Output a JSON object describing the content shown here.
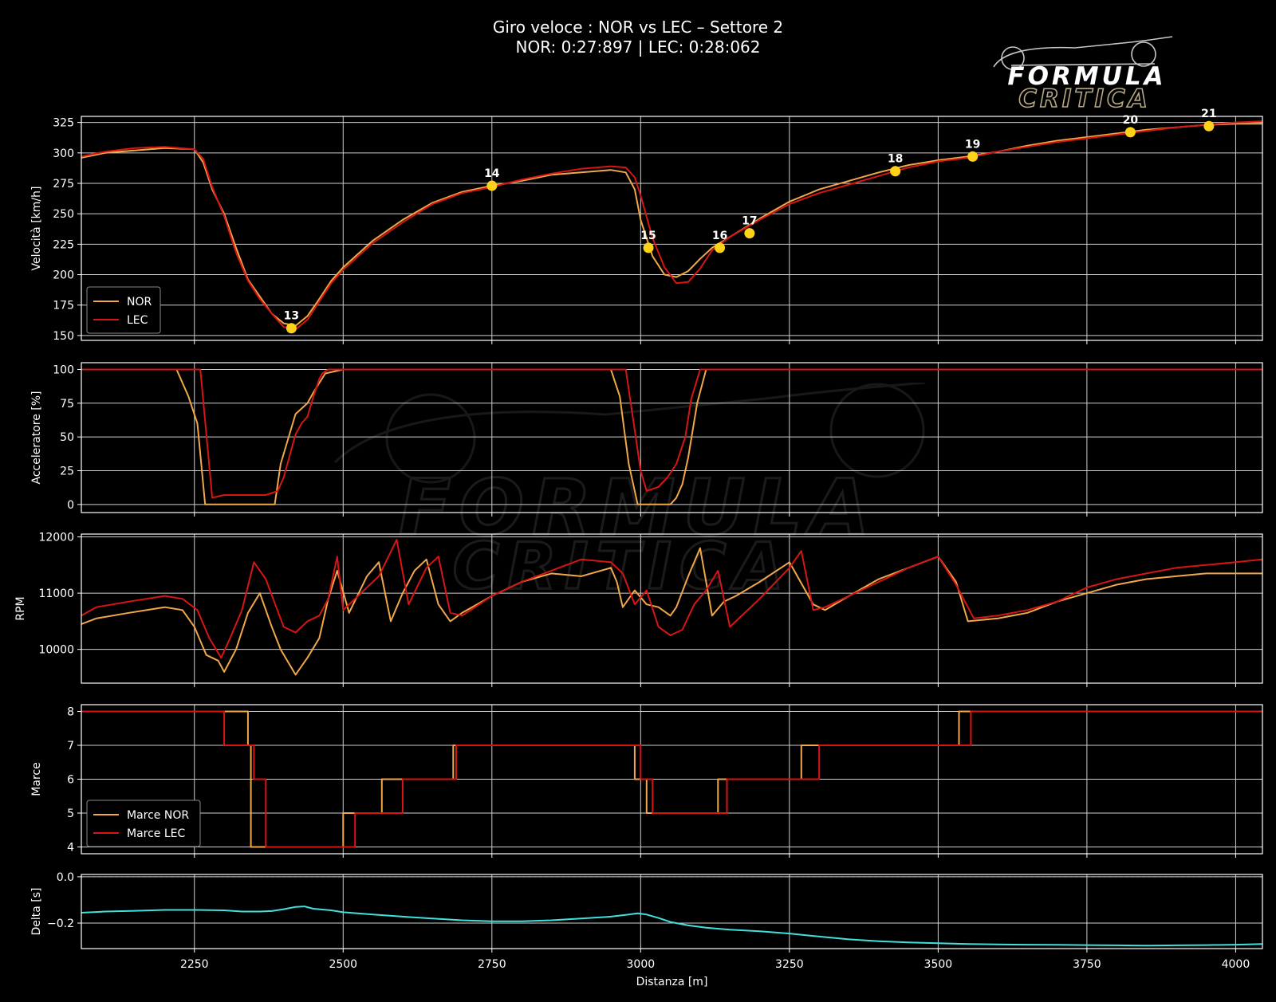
{
  "title": {
    "line1": "Giro veloce : NOR vs LEC – Settore 2",
    "line2": "NOR: 0:27:897 | LEC: 0:28:062"
  },
  "logo": {
    "line1": "FORMULA",
    "line2": "CRITICA"
  },
  "colors": {
    "nor": "#f0a848",
    "lec": "#d81515",
    "delta": "#40e0e0",
    "corner": "#ffd21a",
    "grid": "#cfcfcf"
  },
  "chart_data": [
    {
      "type": "line",
      "ylabel": "Velocità [km/h]",
      "xlim": [
        2060,
        4045
      ],
      "ylim": [
        146,
        330
      ],
      "yticks": [
        150,
        175,
        200,
        225,
        250,
        275,
        300,
        325
      ],
      "legend": "bottom-left",
      "series": [
        {
          "name": "NOR",
          "x": [
            2060,
            2100,
            2150,
            2200,
            2250,
            2265,
            2280,
            2300,
            2320,
            2340,
            2360,
            2380,
            2400,
            2420,
            2440,
            2460,
            2480,
            2500,
            2550,
            2600,
            2650,
            2700,
            2750,
            2800,
            2850,
            2900,
            2950,
            2975,
            2990,
            3000,
            3020,
            3040,
            3060,
            3080,
            3100,
            3120,
            3150,
            3200,
            3250,
            3300,
            3350,
            3400,
            3450,
            3500,
            3550,
            3600,
            3650,
            3700,
            3750,
            3800,
            3850,
            3900,
            3950,
            4000,
            4045
          ],
          "values": [
            296,
            300,
            302,
            304,
            303,
            292,
            270,
            250,
            222,
            196,
            182,
            168,
            160,
            158,
            166,
            180,
            195,
            206,
            228,
            245,
            259,
            268,
            273,
            277,
            282,
            284,
            286,
            284,
            270,
            245,
            215,
            200,
            198,
            203,
            213,
            222,
            231,
            246,
            260,
            270,
            277,
            284,
            290,
            294,
            297,
            301,
            306,
            310,
            313,
            316,
            319,
            321,
            323,
            324,
            324
          ]
        },
        {
          "name": "LEC",
          "x": [
            2060,
            2100,
            2150,
            2200,
            2250,
            2265,
            2280,
            2300,
            2320,
            2340,
            2360,
            2380,
            2400,
            2420,
            2440,
            2460,
            2480,
            2500,
            2550,
            2600,
            2650,
            2700,
            2750,
            2800,
            2850,
            2900,
            2950,
            2975,
            2990,
            3000,
            3020,
            3040,
            3060,
            3080,
            3100,
            3120,
            3150,
            3200,
            3250,
            3300,
            3350,
            3400,
            3450,
            3500,
            3550,
            3600,
            3650,
            3700,
            3750,
            3800,
            3850,
            3900,
            3950,
            4000,
            4045
          ],
          "values": [
            297,
            301,
            304,
            305,
            303,
            295,
            272,
            248,
            218,
            195,
            180,
            168,
            157,
            155,
            163,
            178,
            193,
            204,
            226,
            243,
            258,
            267,
            272,
            278,
            283,
            287,
            289,
            288,
            280,
            265,
            230,
            206,
            193,
            194,
            205,
            220,
            231,
            245,
            258,
            267,
            274,
            281,
            288,
            293,
            296,
            301,
            305,
            309,
            312,
            315,
            318,
            321,
            323,
            325,
            326
          ]
        }
      ],
      "annotations": [
        {
          "label": "13",
          "x": 2413,
          "y": 156
        },
        {
          "label": "14",
          "x": 2750,
          "y": 273
        },
        {
          "label": "15",
          "x": 3013,
          "y": 222
        },
        {
          "label": "16",
          "x": 3133,
          "y": 222
        },
        {
          "label": "17",
          "x": 3183,
          "y": 234
        },
        {
          "label": "18",
          "x": 3428,
          "y": 285
        },
        {
          "label": "19",
          "x": 3558,
          "y": 297
        },
        {
          "label": "20",
          "x": 3823,
          "y": 317
        },
        {
          "label": "21",
          "x": 3955,
          "y": 322
        }
      ]
    },
    {
      "type": "line",
      "ylabel": "Acceleratore [%]",
      "xlim": [
        2060,
        4045
      ],
      "ylim": [
        -6,
        105
      ],
      "yticks": [
        0,
        25,
        50,
        75,
        100
      ],
      "series": [
        {
          "name": "NOR",
          "x": [
            2060,
            2220,
            2240,
            2255,
            2268,
            2300,
            2350,
            2380,
            2385,
            2395,
            2420,
            2440,
            2450,
            2460,
            2470,
            2500,
            2600,
            2700,
            2800,
            2900,
            2950,
            2965,
            2980,
            2995,
            3010,
            3030,
            3050,
            3060,
            3070,
            3080,
            3095,
            3110,
            4045
          ],
          "values": [
            100,
            100,
            80,
            60,
            0,
            0,
            0,
            0,
            0,
            30,
            67,
            75,
            83,
            90,
            97,
            100,
            100,
            100,
            100,
            100,
            100,
            80,
            30,
            0,
            0,
            0,
            0,
            5,
            15,
            35,
            75,
            100,
            100
          ]
        },
        {
          "name": "LEC",
          "x": [
            2060,
            2250,
            2260,
            2280,
            2300,
            2330,
            2370,
            2390,
            2400,
            2420,
            2430,
            2440,
            2450,
            2460,
            2465,
            2475,
            2500,
            2600,
            2700,
            2800,
            2900,
            2960,
            2975,
            2990,
            3000,
            3010,
            3030,
            3045,
            3060,
            3075,
            3085,
            3100,
            3115,
            4045
          ],
          "values": [
            100,
            100,
            100,
            5,
            7,
            7,
            7,
            10,
            20,
            52,
            60,
            65,
            80,
            93,
            97,
            100,
            100,
            100,
            100,
            100,
            100,
            100,
            100,
            55,
            25,
            10,
            13,
            20,
            30,
            50,
            78,
            100,
            100,
            100
          ]
        }
      ]
    },
    {
      "type": "line",
      "ylabel": "RPM",
      "xlim": [
        2060,
        4045
      ],
      "ylim": [
        9400,
        12050
      ],
      "yticks": [
        10000,
        11000,
        12000
      ],
      "series": [
        {
          "name": "NOR",
          "x": [
            2060,
            2085,
            2140,
            2200,
            2230,
            2250,
            2270,
            2290,
            2300,
            2320,
            2340,
            2360,
            2380,
            2395,
            2420,
            2440,
            2460,
            2475,
            2490,
            2510,
            2540,
            2560,
            2580,
            2600,
            2620,
            2640,
            2660,
            2680,
            2700,
            2750,
            2800,
            2850,
            2900,
            2950,
            2960,
            2970,
            2990,
            3010,
            3030,
            3050,
            3060,
            3080,
            3100,
            3120,
            3140,
            3160,
            3200,
            3250,
            3290,
            3310,
            3350,
            3400,
            3450,
            3500,
            3530,
            3550,
            3600,
            3650,
            3700,
            3750,
            3800,
            3850,
            3900,
            3950,
            4000,
            4045
          ],
          "values": [
            10450,
            10550,
            10650,
            10750,
            10700,
            10400,
            9900,
            9800,
            9600,
            10000,
            10650,
            11000,
            10400,
            10000,
            9550,
            9850,
            10200,
            10900,
            11400,
            10650,
            11300,
            11550,
            10500,
            11000,
            11400,
            11600,
            10800,
            10500,
            10650,
            10950,
            11200,
            11350,
            11300,
            11450,
            11200,
            10750,
            11050,
            10800,
            10750,
            10600,
            10750,
            11300,
            11800,
            10600,
            10850,
            10950,
            11200,
            11550,
            10800,
            10700,
            10950,
            11250,
            11450,
            11650,
            11200,
            10500,
            10550,
            10650,
            10850,
            11000,
            11150,
            11250,
            11300,
            11350,
            11350,
            11350
          ]
        },
        {
          "name": "LEC",
          "x": [
            2060,
            2085,
            2140,
            2200,
            2230,
            2255,
            2275,
            2295,
            2310,
            2330,
            2350,
            2370,
            2400,
            2420,
            2440,
            2460,
            2475,
            2490,
            2500,
            2520,
            2560,
            2590,
            2610,
            2640,
            2660,
            2680,
            2700,
            2750,
            2800,
            2850,
            2900,
            2950,
            2970,
            2990,
            3010,
            3030,
            3050,
            3070,
            3090,
            3110,
            3130,
            3150,
            3200,
            3250,
            3270,
            3290,
            3310,
            3350,
            3400,
            3450,
            3500,
            3530,
            3560,
            3600,
            3650,
            3700,
            3750,
            3800,
            3850,
            3900,
            3950,
            4000,
            4045
          ],
          "values": [
            10600,
            10750,
            10850,
            10950,
            10900,
            10700,
            10200,
            9850,
            10200,
            10700,
            11550,
            11250,
            10400,
            10300,
            10500,
            10600,
            10900,
            11650,
            10700,
            10900,
            11300,
            11950,
            10800,
            11450,
            11650,
            10650,
            10600,
            10950,
            11200,
            11400,
            11600,
            11550,
            11350,
            10800,
            11050,
            10400,
            10250,
            10350,
            10800,
            11050,
            11400,
            10400,
            10900,
            11450,
            11750,
            10700,
            10750,
            10950,
            11200,
            11450,
            11650,
            11150,
            10550,
            10600,
            10700,
            10850,
            11100,
            11250,
            11350,
            11450,
            11500,
            11550,
            11600
          ]
        }
      ]
    },
    {
      "type": "line",
      "ylabel": "Marce",
      "xlim": [
        2060,
        4045
      ],
      "ylim": [
        3.8,
        8.2
      ],
      "yticks": [
        4,
        5,
        6,
        7,
        8
      ],
      "legend": "bottom-left",
      "series": [
        {
          "name": "Marce NOR",
          "x": [
            2060,
            2330,
            2340,
            2340,
            2345,
            2345,
            2490,
            2500,
            2500,
            2560,
            2565,
            2565,
            2610,
            2620,
            2620,
            2680,
            2685,
            2685,
            2985,
            2990,
            2990,
            3005,
            3010,
            3010,
            3120,
            3130,
            3130,
            3265,
            3270,
            3270,
            3525,
            3535,
            3535,
            4045
          ],
          "values": [
            8,
            8,
            8,
            7,
            7,
            4,
            4,
            4,
            5,
            5,
            5,
            6,
            6,
            6,
            6,
            6,
            6,
            7,
            7,
            7,
            6,
            6,
            6,
            5,
            5,
            5,
            6,
            6,
            6,
            7,
            7,
            7,
            8,
            8
          ]
        },
        {
          "name": "Marce LEC",
          "x": [
            2060,
            2290,
            2300,
            2300,
            2340,
            2350,
            2350,
            2360,
            2370,
            2370,
            2510,
            2520,
            2520,
            2590,
            2600,
            2600,
            2680,
            2690,
            2690,
            2990,
            3000,
            3000,
            3010,
            3020,
            3020,
            3135,
            3145,
            3145,
            3290,
            3300,
            3300,
            3545,
            3555,
            3555,
            4045
          ],
          "values": [
            8,
            8,
            8,
            7,
            7,
            7,
            6,
            6,
            6,
            4,
            4,
            4,
            5,
            5,
            5,
            6,
            6,
            6,
            7,
            7,
            7,
            6,
            6,
            6,
            5,
            5,
            5,
            6,
            6,
            6,
            7,
            7,
            7,
            8,
            8
          ]
        }
      ]
    },
    {
      "type": "line",
      "ylabel": "Delta [s]",
      "xlabel": "Distanza [m]",
      "xlim": [
        2060,
        4045
      ],
      "ylim": [
        -0.31,
        0.01
      ],
      "yticks": [
        0.0,
        -0.2
      ],
      "yticklabels": [
        "0.0",
        "−0.2"
      ],
      "xticks": [
        2250,
        2500,
        2750,
        3000,
        3250,
        3500,
        3750,
        4000
      ],
      "series": [
        {
          "name": "Delta",
          "x": [
            2060,
            2100,
            2150,
            2200,
            2250,
            2300,
            2330,
            2360,
            2380,
            2400,
            2420,
            2435,
            2450,
            2480,
            2500,
            2550,
            2600,
            2650,
            2700,
            2750,
            2800,
            2850,
            2900,
            2950,
            2980,
            2995,
            3010,
            3030,
            3050,
            3080,
            3110,
            3150,
            3200,
            3250,
            3300,
            3350,
            3400,
            3450,
            3500,
            3550,
            3600,
            3650,
            3700,
            3750,
            3800,
            3850,
            3900,
            3950,
            4000,
            4045
          ],
          "values": [
            -0.155,
            -0.15,
            -0.147,
            -0.143,
            -0.143,
            -0.145,
            -0.15,
            -0.15,
            -0.148,
            -0.14,
            -0.13,
            -0.128,
            -0.138,
            -0.145,
            -0.153,
            -0.163,
            -0.172,
            -0.18,
            -0.188,
            -0.192,
            -0.192,
            -0.188,
            -0.18,
            -0.172,
            -0.163,
            -0.158,
            -0.163,
            -0.178,
            -0.195,
            -0.21,
            -0.22,
            -0.228,
            -0.235,
            -0.245,
            -0.258,
            -0.27,
            -0.278,
            -0.283,
            -0.287,
            -0.29,
            -0.292,
            -0.293,
            -0.294,
            -0.295,
            -0.296,
            -0.297,
            -0.296,
            -0.295,
            -0.293,
            -0.29
          ]
        }
      ],
      "reference_line": 0.0
    }
  ]
}
